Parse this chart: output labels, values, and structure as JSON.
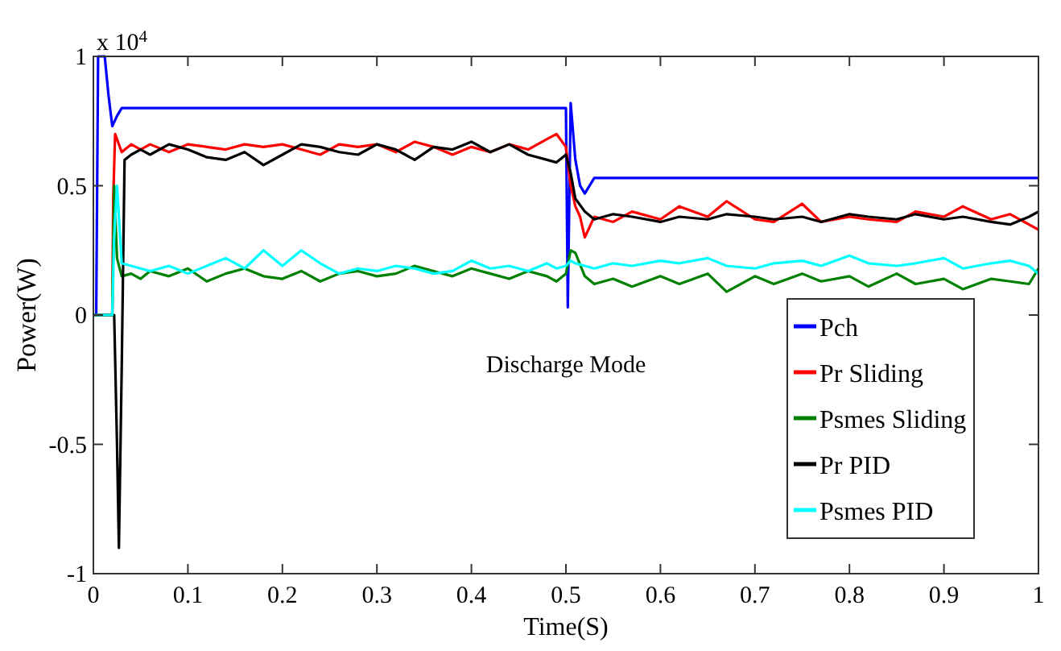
{
  "chart_data": {
    "type": "line",
    "xlabel": "Time(S)",
    "ylabel": "Power(W)",
    "annotations": [
      "Discharge Mode",
      "x 10$^{4}$"
    ],
    "xlim": [
      0,
      1
    ],
    "xticks": [
      0,
      0.1,
      0.2,
      0.3,
      0.4,
      0.5,
      0.6,
      0.7,
      0.8,
      0.9,
      1
    ],
    "ylim": [
      -1,
      1
    ],
    "yticks": [
      -1,
      -0.5,
      0,
      0.5,
      1
    ],
    "grid": false,
    "legend": "bottom right",
    "marker": "none",
    "line_style": "solid",
    "series": [
      {
        "name": "Pch",
        "color": "#0000ff",
        "x": [
          0,
          0.003,
          0.005,
          0.012,
          0.016,
          0.02,
          0.025,
          0.03,
          0.499,
          0.5,
          0.502,
          0.505,
          0.51,
          0.515,
          0.52,
          0.53,
          1
        ],
        "values": [
          0,
          0,
          1,
          1,
          0.85,
          0.73,
          0.77,
          0.8,
          0.8,
          0.8,
          0.03,
          0.82,
          0.6,
          0.5,
          0.47,
          0.53,
          0.53
        ]
      },
      {
        "name": "Pr Sliding",
        "color": "#ff0000",
        "x": [
          0,
          0.02,
          0.021,
          0.023,
          0.03,
          0.04,
          0.05,
          0.06,
          0.08,
          0.1,
          0.12,
          0.14,
          0.16,
          0.18,
          0.2,
          0.22,
          0.24,
          0.26,
          0.28,
          0.3,
          0.32,
          0.34,
          0.36,
          0.38,
          0.4,
          0.42,
          0.44,
          0.46,
          0.48,
          0.49,
          0.5,
          0.505,
          0.51,
          0.515,
          0.52,
          0.53,
          0.55,
          0.57,
          0.6,
          0.62,
          0.65,
          0.67,
          0.7,
          0.72,
          0.75,
          0.77,
          0.8,
          0.82,
          0.85,
          0.87,
          0.9,
          0.92,
          0.95,
          0.97,
          0.99,
          1
        ],
        "values": [
          0,
          0,
          0.45,
          0.7,
          0.63,
          0.66,
          0.64,
          0.66,
          0.63,
          0.66,
          0.65,
          0.64,
          0.66,
          0.65,
          0.66,
          0.64,
          0.62,
          0.66,
          0.65,
          0.66,
          0.63,
          0.67,
          0.65,
          0.62,
          0.65,
          0.63,
          0.66,
          0.64,
          0.68,
          0.7,
          0.65,
          0.5,
          0.42,
          0.38,
          0.3,
          0.38,
          0.36,
          0.4,
          0.37,
          0.42,
          0.38,
          0.44,
          0.37,
          0.36,
          0.43,
          0.36,
          0.38,
          0.37,
          0.36,
          0.4,
          0.38,
          0.42,
          0.37,
          0.39,
          0.35,
          0.33
        ]
      },
      {
        "name": "Psmes Sliding",
        "color": "#008000",
        "x": [
          0,
          0.02,
          0.022,
          0.025,
          0.03,
          0.04,
          0.05,
          0.06,
          0.08,
          0.1,
          0.12,
          0.14,
          0.16,
          0.18,
          0.2,
          0.22,
          0.24,
          0.26,
          0.28,
          0.3,
          0.32,
          0.34,
          0.36,
          0.38,
          0.4,
          0.42,
          0.44,
          0.46,
          0.48,
          0.49,
          0.5,
          0.505,
          0.51,
          0.52,
          0.53,
          0.55,
          0.57,
          0.6,
          0.62,
          0.65,
          0.67,
          0.7,
          0.72,
          0.75,
          0.77,
          0.8,
          0.82,
          0.85,
          0.87,
          0.9,
          0.92,
          0.95,
          0.97,
          0.99,
          1
        ],
        "values": [
          0,
          0,
          0.5,
          0.22,
          0.15,
          0.16,
          0.14,
          0.17,
          0.15,
          0.18,
          0.13,
          0.16,
          0.18,
          0.15,
          0.14,
          0.17,
          0.13,
          0.16,
          0.17,
          0.15,
          0.16,
          0.19,
          0.17,
          0.15,
          0.18,
          0.16,
          0.14,
          0.17,
          0.15,
          0.13,
          0.16,
          0.25,
          0.24,
          0.15,
          0.12,
          0.14,
          0.11,
          0.15,
          0.12,
          0.16,
          0.09,
          0.15,
          0.12,
          0.16,
          0.13,
          0.15,
          0.11,
          0.16,
          0.12,
          0.14,
          0.1,
          0.14,
          0.13,
          0.12,
          0.18
        ]
      },
      {
        "name": "Pr PID",
        "color": "#000000",
        "x": [
          0,
          0.022,
          0.025,
          0.027,
          0.03,
          0.033,
          0.04,
          0.05,
          0.06,
          0.08,
          0.1,
          0.12,
          0.14,
          0.16,
          0.18,
          0.2,
          0.22,
          0.24,
          0.26,
          0.28,
          0.3,
          0.32,
          0.34,
          0.36,
          0.38,
          0.4,
          0.42,
          0.44,
          0.46,
          0.48,
          0.49,
          0.5,
          0.505,
          0.51,
          0.52,
          0.53,
          0.55,
          0.57,
          0.6,
          0.62,
          0.65,
          0.67,
          0.7,
          0.72,
          0.75,
          0.77,
          0.8,
          0.82,
          0.85,
          0.87,
          0.9,
          0.92,
          0.95,
          0.97,
          0.99,
          1
        ],
        "values": [
          0,
          0,
          -0.5,
          -0.9,
          -0.2,
          0.6,
          0.62,
          0.64,
          0.62,
          0.66,
          0.64,
          0.61,
          0.6,
          0.63,
          0.58,
          0.62,
          0.66,
          0.65,
          0.63,
          0.62,
          0.66,
          0.64,
          0.6,
          0.65,
          0.64,
          0.67,
          0.63,
          0.66,
          0.62,
          0.6,
          0.59,
          0.62,
          0.55,
          0.45,
          0.4,
          0.37,
          0.39,
          0.38,
          0.36,
          0.38,
          0.37,
          0.39,
          0.38,
          0.37,
          0.38,
          0.36,
          0.39,
          0.38,
          0.37,
          0.39,
          0.37,
          0.38,
          0.36,
          0.35,
          0.38,
          0.4
        ]
      },
      {
        "name": "Psmes PID",
        "color": "#00ffff",
        "x": [
          0,
          0.02,
          0.022,
          0.025,
          0.03,
          0.04,
          0.05,
          0.06,
          0.08,
          0.1,
          0.12,
          0.14,
          0.16,
          0.18,
          0.2,
          0.22,
          0.24,
          0.26,
          0.28,
          0.3,
          0.32,
          0.34,
          0.36,
          0.38,
          0.4,
          0.42,
          0.44,
          0.46,
          0.48,
          0.49,
          0.5,
          0.505,
          0.51,
          0.52,
          0.53,
          0.55,
          0.57,
          0.6,
          0.62,
          0.65,
          0.67,
          0.7,
          0.72,
          0.75,
          0.77,
          0.8,
          0.82,
          0.85,
          0.87,
          0.9,
          0.92,
          0.95,
          0.97,
          0.99,
          1
        ],
        "values": [
          0,
          0,
          0.3,
          0.5,
          0.2,
          0.19,
          0.18,
          0.17,
          0.19,
          0.16,
          0.19,
          0.22,
          0.18,
          0.25,
          0.19,
          0.25,
          0.2,
          0.16,
          0.18,
          0.17,
          0.19,
          0.18,
          0.16,
          0.17,
          0.21,
          0.18,
          0.19,
          0.17,
          0.2,
          0.18,
          0.19,
          0.21,
          0.2,
          0.19,
          0.18,
          0.2,
          0.19,
          0.21,
          0.2,
          0.22,
          0.19,
          0.18,
          0.2,
          0.21,
          0.19,
          0.23,
          0.2,
          0.19,
          0.2,
          0.22,
          0.18,
          0.2,
          0.21,
          0.19,
          0.16
        ]
      }
    ]
  }
}
